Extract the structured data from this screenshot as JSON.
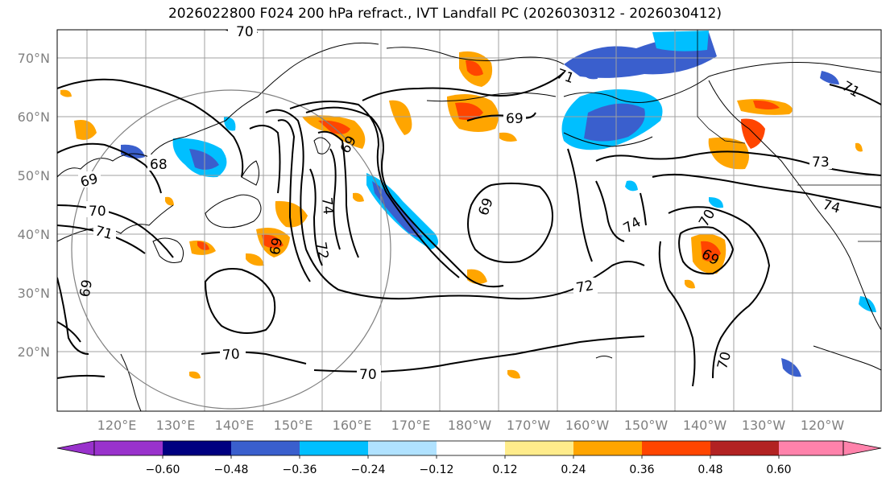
{
  "title": "2026022800 F024 200 hPa refract., IVT Landfall PC (2026030312 - 2026030412)",
  "lat_labels": [
    "70°N",
    "60°N",
    "50°N",
    "40°N",
    "30°N",
    "20°N"
  ],
  "lon_labels": [
    "120°E",
    "130°E",
    "140°E",
    "150°E",
    "160°E",
    "170°E",
    "180°W",
    "170°W",
    "160°W",
    "150°W",
    "140°W",
    "130°W",
    "120°W"
  ],
  "contour_labels": [
    "70",
    "69",
    "68",
    "69",
    "70",
    "71",
    "69",
    "74",
    "72",
    "69",
    "69",
    "69",
    "74",
    "70",
    "69",
    "72",
    "71",
    "73",
    "74",
    "70",
    "70",
    "70",
    "71"
  ],
  "colorbar": {
    "ticks": [
      "−0.60",
      "−0.48",
      "−0.36",
      "−0.24",
      "−0.12",
      "0.12",
      "0.24",
      "0.36",
      "0.48",
      "0.60"
    ],
    "colors": [
      "#9932cc",
      "#000080",
      "#3a5fcd",
      "#00bfff",
      "#b0e2ff",
      "#ffffff",
      "#ffec8b",
      "#ffa500",
      "#ff4500",
      "#b22222",
      "#ff82ab"
    ]
  },
  "map_colors": {
    "coast": "#000000",
    "grid": "#a0a0a0",
    "contour": "#000000",
    "circle": "#808080"
  }
}
